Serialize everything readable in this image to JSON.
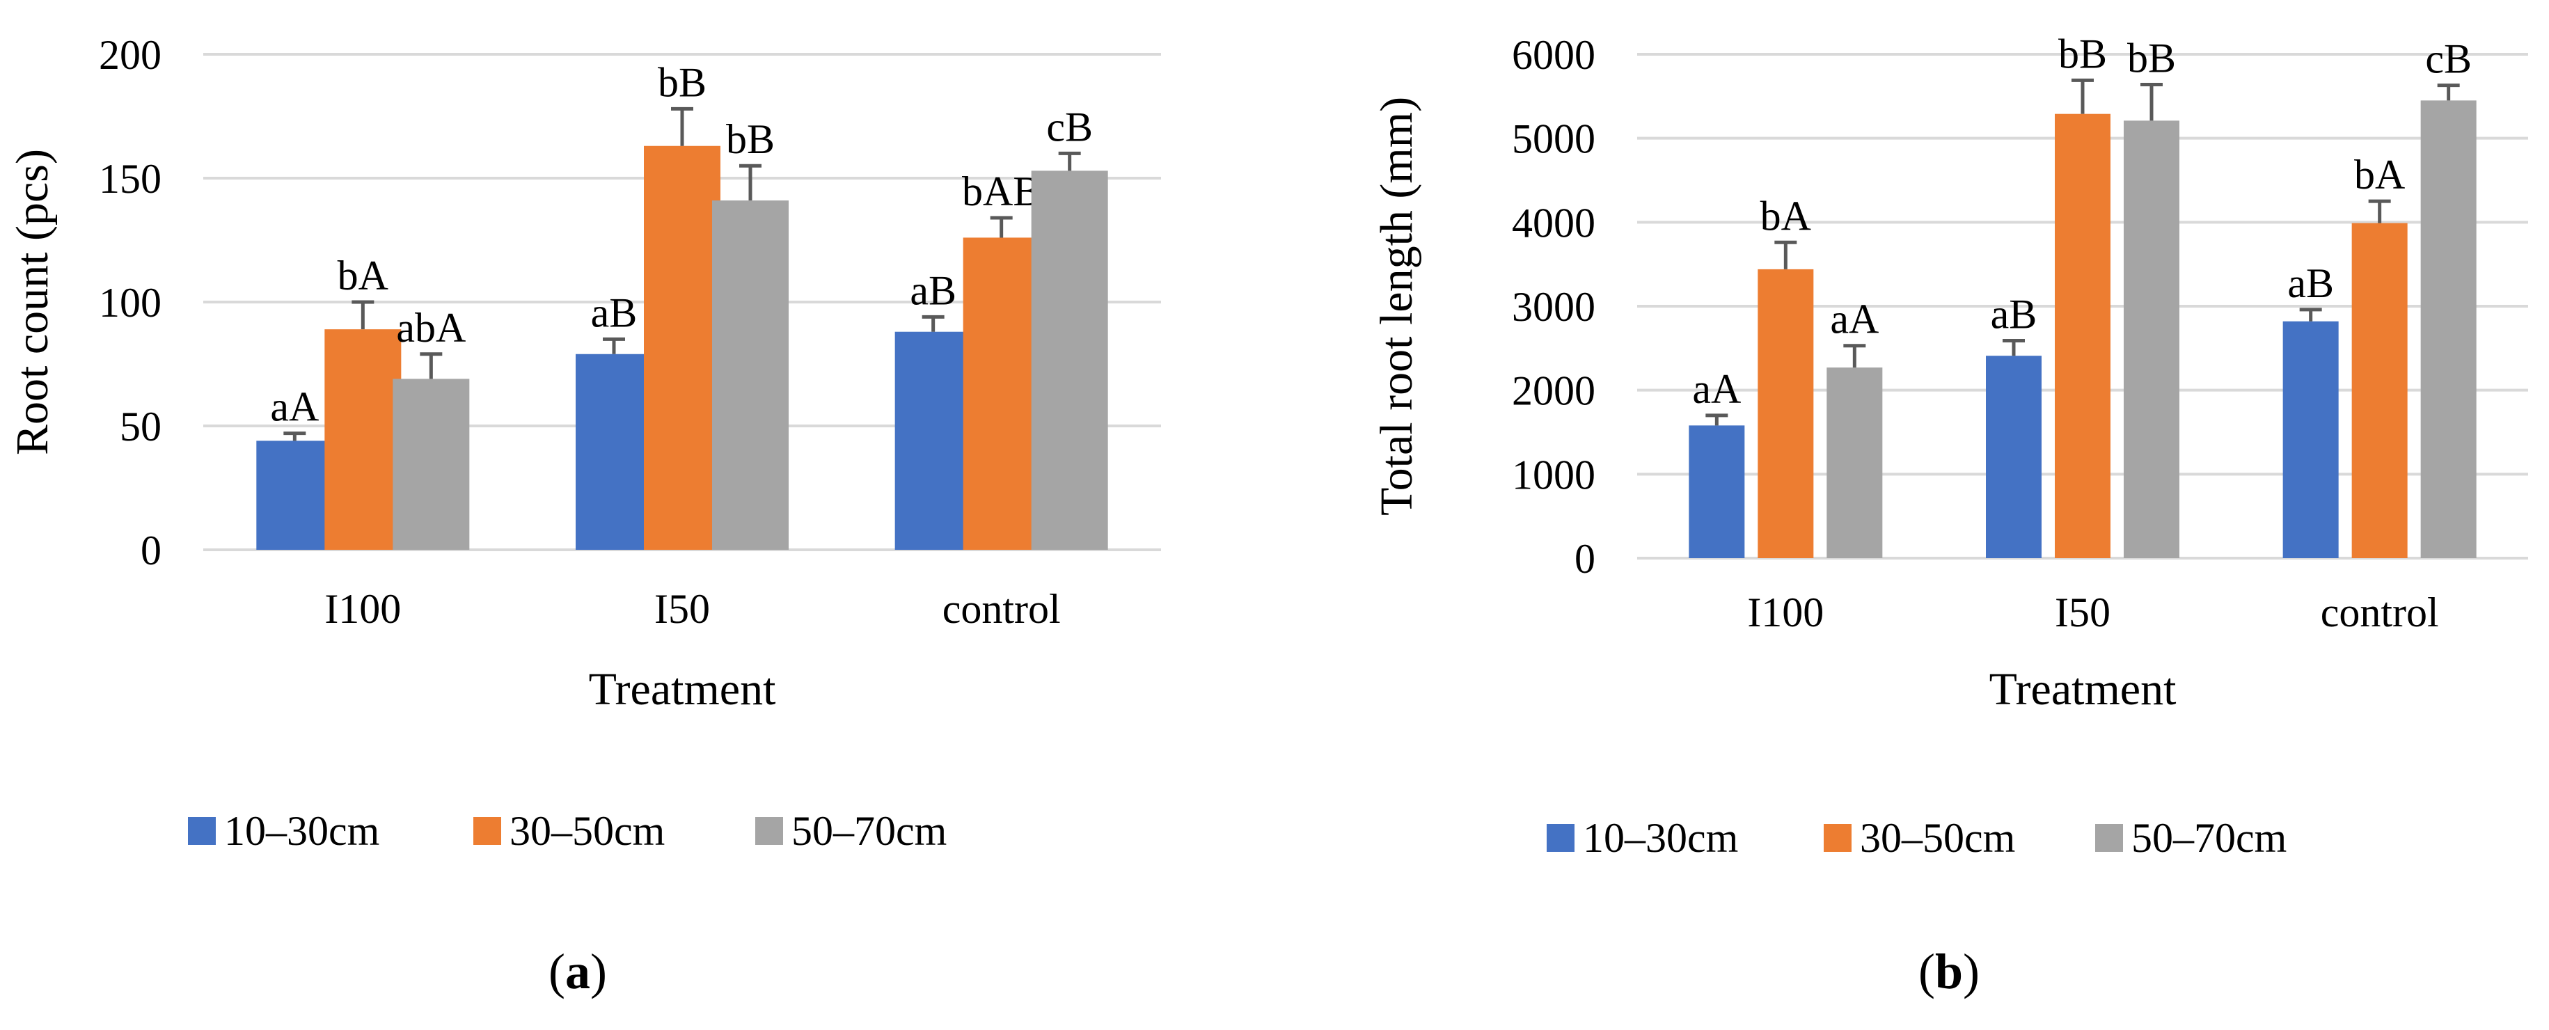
{
  "chart_data": [
    {
      "type": "bar",
      "panel_label": "a",
      "categories": [
        "I100",
        "I50",
        "control"
      ],
      "series": [
        {
          "name": "10–30cm",
          "color": "#4472c4",
          "values": [
            44,
            79,
            88
          ],
          "errors": [
            3,
            6,
            6
          ],
          "labels": [
            "aA",
            "aB",
            "aB"
          ]
        },
        {
          "name": "30–50cm",
          "color": "#ed7d31",
          "values": [
            89,
            163,
            126
          ],
          "errors": [
            11,
            15,
            8
          ],
          "labels": [
            "bA",
            "bB",
            "bAB"
          ]
        },
        {
          "name": "50–70cm",
          "color": "#a5a5a5",
          "values": [
            69,
            141,
            153
          ],
          "errors": [
            10,
            14,
            7
          ],
          "labels": [
            "abA",
            "bB",
            "cB"
          ]
        }
      ],
      "xlabel": "Treatment",
      "ylabel": "Root count (pcs)",
      "ylim": [
        0,
        200
      ],
      "yticks": [
        "0",
        "50",
        "100",
        "150",
        "200"
      ],
      "grid": true,
      "legend_position": "bottom"
    },
    {
      "type": "bar",
      "panel_label": "b",
      "categories": [
        "I100",
        "I50",
        "control"
      ],
      "series": [
        {
          "name": "10–30cm",
          "color": "#4472c4",
          "values": [
            1580,
            2410,
            2820
          ],
          "errors": [
            120,
            180,
            140
          ],
          "labels": [
            "aA",
            "aB",
            "aB"
          ]
        },
        {
          "name": "30–50cm",
          "color": "#ed7d31",
          "values": [
            3440,
            5290,
            3990
          ],
          "errors": [
            320,
            400,
            260
          ],
          "labels": [
            "bA",
            "bB",
            "bA"
          ]
        },
        {
          "name": "50–70cm",
          "color": "#a5a5a5",
          "values": [
            2270,
            5210,
            5450
          ],
          "errors": [
            260,
            430,
            180
          ],
          "labels": [
            "aA",
            "bB",
            "cB"
          ]
        }
      ],
      "xlabel": "Treatment",
      "ylabel": "Total root length (mm)",
      "ylim": [
        0,
        6000
      ],
      "yticks": [
        "0",
        "1000",
        "2000",
        "3000",
        "4000",
        "5000",
        "6000"
      ],
      "grid": true,
      "legend_position": "bottom"
    }
  ]
}
